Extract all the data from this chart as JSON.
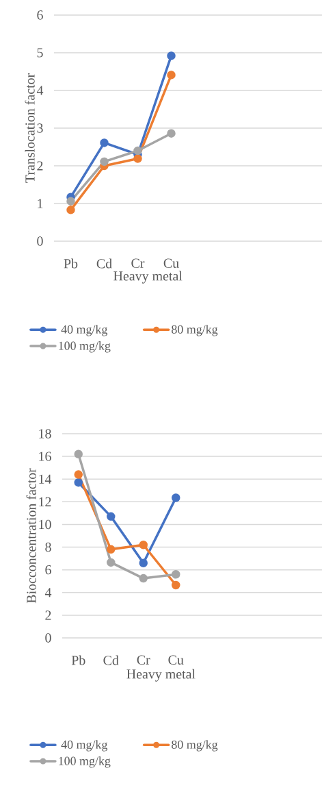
{
  "chart_data": [
    {
      "type": "line",
      "xlabel": "Heavy metal",
      "ylabel": "Translocation factor",
      "categories": [
        "Pb",
        "Cd",
        "Cr",
        "Cu",
        null,
        null,
        null,
        null
      ],
      "ylim": [
        0,
        6
      ],
      "yticks": [
        0,
        1,
        2,
        3,
        4,
        5,
        6
      ],
      "grid": "y",
      "legend": "bottom",
      "marker": "circle",
      "line_style": "solid",
      "series": [
        {
          "name": "40 mg/kg",
          "color": "#4472c4",
          "values": [
            1.17,
            2.61,
            2.3,
            4.92,
            null,
            null,
            null,
            null
          ]
        },
        {
          "name": "80 mg/kg",
          "color": "#ed7d31",
          "values": [
            0.83,
            2.0,
            2.19,
            4.41,
            null,
            null,
            null,
            null
          ]
        },
        {
          "name": "100 mg/kg",
          "color": "#a5a5a5",
          "values": [
            1.06,
            2.11,
            2.4,
            2.86,
            null,
            null,
            null,
            null
          ]
        }
      ]
    },
    {
      "type": "line",
      "xlabel": "Heavy metal",
      "ylabel": "Biocconcentration factor",
      "categories": [
        "Pb",
        "Cd",
        "Cr",
        "Cu",
        null,
        null,
        null,
        null
      ],
      "ylim": [
        0,
        18
      ],
      "yticks": [
        0,
        2,
        4,
        6,
        8,
        10,
        12,
        14,
        16,
        18
      ],
      "grid": "y",
      "legend": "bottom",
      "marker": "circle",
      "line_style": "solid",
      "series": [
        {
          "name": "40 mg/kg",
          "color": "#4472c4",
          "values": [
            13.7,
            10.7,
            6.6,
            12.35,
            null,
            null,
            null,
            null
          ]
        },
        {
          "name": "80 mg/kg",
          "color": "#ed7d31",
          "values": [
            14.4,
            7.8,
            8.2,
            4.65,
            null,
            null,
            null,
            null
          ]
        },
        {
          "name": "100 mg/kg",
          "color": "#a5a5a5",
          "values": [
            16.2,
            6.65,
            5.25,
            5.6,
            null,
            null,
            null,
            null
          ]
        }
      ]
    }
  ]
}
